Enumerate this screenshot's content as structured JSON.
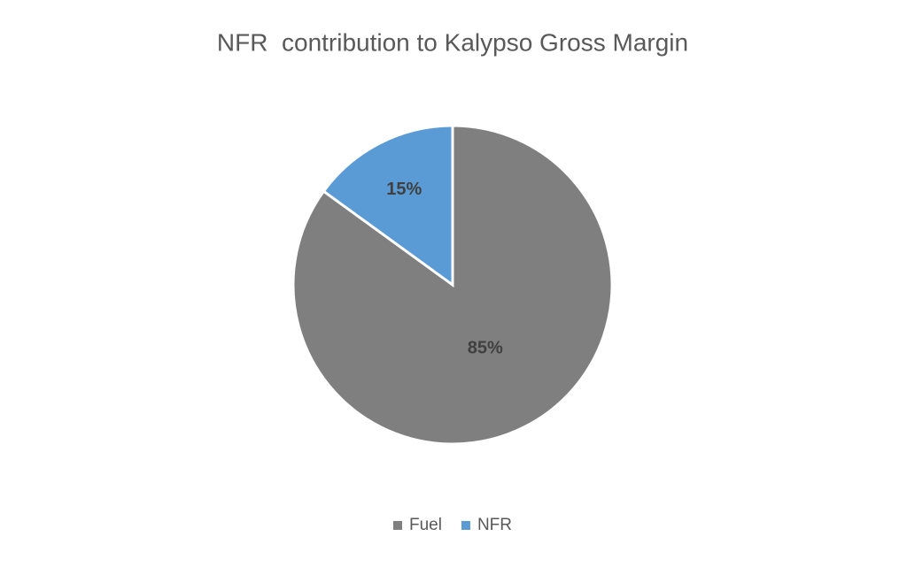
{
  "chart_data": {
    "type": "pie",
    "title": "NFR  contribution to Kalypso Gross Margin",
    "categories": [
      "Fuel",
      "NFR"
    ],
    "values": [
      85,
      15
    ],
    "value_labels": [
      "85%",
      "15%"
    ],
    "colors": [
      "#7f7f7f",
      "#5b9bd5"
    ],
    "legend": "bottom"
  }
}
